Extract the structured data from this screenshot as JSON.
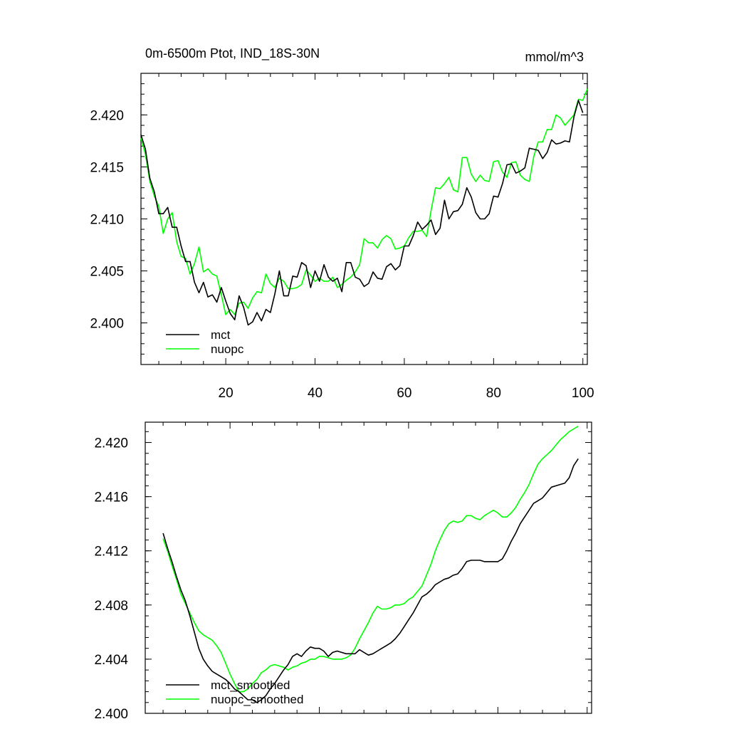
{
  "chart_data": [
    {
      "type": "line",
      "title": "0m-6500m Ptot, IND_18S-30N",
      "units": "mmol/m^3",
      "xlim": [
        1,
        101
      ],
      "ylim": [
        2.396,
        2.424
      ],
      "xticks": [
        20,
        40,
        60,
        80,
        100
      ],
      "yticks": [
        2.4,
        2.405,
        2.41,
        2.415,
        2.42
      ],
      "ytick_labels": [
        "2.400",
        "2.405",
        "2.410",
        "2.415",
        "2.420"
      ],
      "legend_position": "bottom-left",
      "series": [
        {
          "name": "mct",
          "color": "#000000",
          "x": [
            1,
            2,
            3,
            4,
            5,
            6,
            7,
            8,
            9,
            10,
            11,
            12,
            13,
            14,
            15,
            16,
            17,
            18,
            19,
            20,
            21,
            22,
            23,
            24,
            25,
            26,
            27,
            28,
            29,
            30,
            31,
            32,
            33,
            34,
            35,
            36,
            37,
            38,
            39,
            40,
            41,
            42,
            43,
            44,
            45,
            46,
            47,
            48,
            49,
            50,
            51,
            52,
            53,
            54,
            55,
            56,
            57,
            58,
            59,
            60,
            61,
            62,
            63,
            64,
            65,
            66,
            67,
            68,
            69,
            70,
            71,
            72,
            73,
            74,
            75,
            76,
            77,
            78,
            79,
            80,
            81,
            82,
            83,
            84,
            85,
            86,
            87,
            88,
            89,
            90,
            91,
            92,
            93,
            94,
            95,
            96,
            97,
            98,
            99,
            100
          ],
          "values": [
            2.4181,
            2.4167,
            2.4139,
            2.4126,
            2.4105,
            2.4105,
            2.4111,
            2.4092,
            2.4092,
            2.4074,
            2.4059,
            2.4059,
            2.4039,
            2.4029,
            2.4039,
            2.4025,
            2.4027,
            2.402,
            2.4034,
            2.4021,
            2.4009,
            2.4003,
            2.4026,
            2.4015,
            2.3998,
            2.4001,
            2.401,
            2.4002,
            2.4013,
            2.401,
            2.4028,
            2.405,
            2.4026,
            2.4026,
            2.4045,
            2.4044,
            2.4058,
            2.4055,
            2.4034,
            2.405,
            2.404,
            2.4056,
            2.4044,
            2.404,
            2.4043,
            2.403,
            2.4058,
            2.4058,
            2.4044,
            2.4042,
            2.4035,
            2.4038,
            2.4049,
            2.4043,
            2.4042,
            2.4054,
            2.4057,
            2.4051,
            2.4055,
            2.4074,
            2.4074,
            2.4084,
            2.4097,
            2.409,
            2.4094,
            2.4099,
            2.4085,
            2.4091,
            2.4118,
            2.41,
            2.4107,
            2.4108,
            2.4114,
            2.413,
            2.4121,
            2.4106,
            2.41,
            2.41,
            2.4105,
            2.4122,
            2.4121,
            2.4134,
            2.4152,
            2.4153,
            2.4144,
            2.4146,
            2.4149,
            2.4168,
            2.4167,
            2.4166,
            2.4158,
            2.4164,
            2.4176,
            2.4172,
            2.4173,
            2.4175,
            2.4174,
            2.4198,
            2.4214,
            2.4202
          ]
        },
        {
          "name": "nuopc",
          "color": "#00ff00",
          "x": [
            1,
            2,
            3,
            4,
            5,
            6,
            7,
            8,
            9,
            10,
            11,
            12,
            13,
            14,
            15,
            16,
            17,
            18,
            19,
            20,
            21,
            22,
            23,
            24,
            25,
            26,
            27,
            28,
            29,
            30,
            31,
            32,
            33,
            34,
            35,
            36,
            37,
            38,
            39,
            40,
            41,
            42,
            43,
            44,
            45,
            46,
            47,
            48,
            49,
            50,
            51,
            52,
            53,
            54,
            55,
            56,
            57,
            58,
            59,
            60,
            61,
            62,
            63,
            64,
            65,
            66,
            67,
            68,
            69,
            70,
            71,
            72,
            73,
            74,
            75,
            76,
            77,
            78,
            79,
            80,
            81,
            82,
            83,
            84,
            85,
            86,
            87,
            88,
            89,
            90,
            91,
            92,
            93,
            94,
            95,
            96,
            97,
            98,
            99,
            100,
            101
          ],
          "values": [
            2.4178,
            2.4162,
            2.4136,
            2.4122,
            2.4112,
            2.4086,
            2.41,
            2.4106,
            2.4078,
            2.4064,
            2.4062,
            2.4047,
            2.4057,
            2.4073,
            2.4049,
            2.4052,
            2.4047,
            2.4045,
            2.4027,
            2.4008,
            2.4013,
            2.4008,
            2.4019,
            2.402,
            2.4014,
            2.4024,
            2.403,
            2.4029,
            2.4047,
            2.4038,
            2.4034,
            2.4043,
            2.404,
            2.4033,
            2.4033,
            2.4034,
            2.4037,
            2.4051,
            2.4046,
            2.404,
            2.4043,
            2.404,
            2.404,
            2.4044,
            2.4034,
            2.4037,
            2.4041,
            2.4044,
            2.4049,
            2.4056,
            2.4081,
            2.4077,
            2.4077,
            2.4072,
            2.408,
            2.4084,
            2.4081,
            2.4071,
            2.4072,
            2.4074,
            2.4082,
            2.4088,
            2.4088,
            2.4089,
            2.4083,
            2.4108,
            2.413,
            2.4129,
            2.4134,
            2.414,
            2.4128,
            2.4126,
            2.4159,
            2.4159,
            2.4143,
            2.4136,
            2.4142,
            2.4137,
            2.4136,
            2.4155,
            2.4156,
            2.4145,
            2.414,
            2.4154,
            2.4155,
            2.4142,
            2.4138,
            2.4136,
            2.416,
            2.4174,
            2.4174,
            2.4186,
            2.4186,
            2.42,
            2.4197,
            2.419,
            2.4195,
            2.42,
            2.4215,
            2.4214,
            2.4225
          ]
        }
      ]
    },
    {
      "type": "line",
      "title": "",
      "xlim": [
        1,
        101
      ],
      "ylim": [
        2.4,
        2.4215
      ],
      "xticks": [
        20,
        40,
        60,
        80,
        100
      ],
      "yticks": [
        2.4,
        2.404,
        2.408,
        2.412,
        2.416,
        2.42
      ],
      "ytick_labels": [
        "2.400",
        "2.404",
        "2.408",
        "2.412",
        "2.416",
        "2.420"
      ],
      "legend_position": "bottom-left",
      "series": [
        {
          "name": "mct_smoothed",
          "color": "#000000",
          "x": [
            5,
            6,
            7,
            8,
            9,
            10,
            11,
            12,
            13,
            14,
            15,
            16,
            17,
            18,
            19,
            20,
            21,
            22,
            23,
            24,
            25,
            26,
            27,
            28,
            29,
            30,
            31,
            32,
            33,
            34,
            35,
            36,
            37,
            38,
            39,
            40,
            41,
            42,
            43,
            44,
            45,
            46,
            47,
            48,
            49,
            50,
            51,
            52,
            53,
            54,
            55,
            56,
            57,
            58,
            59,
            60,
            61,
            62,
            63,
            64,
            65,
            66,
            67,
            68,
            69,
            70,
            71,
            72,
            73,
            74,
            75,
            76,
            77,
            78,
            79,
            80,
            81,
            82,
            83,
            84,
            85,
            86,
            87,
            88,
            89,
            90,
            91,
            92,
            93,
            94,
            95,
            96,
            97,
            98
          ],
          "values": [
            2.4133,
            2.4122,
            2.4112,
            2.4101,
            2.4091,
            2.4083,
            2.4072,
            2.406,
            2.4048,
            2.404,
            2.4035,
            2.4031,
            2.4029,
            2.4027,
            2.4025,
            2.4022,
            2.4018,
            2.4016,
            2.4013,
            2.401,
            2.401,
            2.4008,
            2.401,
            2.4013,
            2.4018,
            2.4022,
            2.4027,
            2.4032,
            2.4036,
            2.4042,
            2.4044,
            2.4042,
            2.4046,
            2.4049,
            2.4048,
            2.4048,
            2.4046,
            2.4042,
            2.4045,
            2.4046,
            2.4045,
            2.4044,
            2.4044,
            2.4044,
            2.4047,
            2.4045,
            2.4043,
            2.4044,
            2.4046,
            2.4048,
            2.405,
            2.4052,
            2.4055,
            2.4059,
            2.4064,
            2.4069,
            2.4074,
            2.408,
            2.4086,
            2.4088,
            2.4091,
            2.4095,
            2.4097,
            2.4099,
            2.41,
            2.4102,
            2.4103,
            2.4107,
            2.4112,
            2.4113,
            2.4113,
            2.4113,
            2.4112,
            2.4112,
            2.4112,
            2.4112,
            2.4114,
            2.412,
            2.4127,
            2.4133,
            2.414,
            2.4145,
            2.415,
            2.4155,
            2.4157,
            2.4159,
            2.4163,
            2.4167,
            2.4168,
            2.4169,
            2.417,
            2.4174,
            2.4183,
            2.4188
          ]
        },
        {
          "name": "nuopc_smoothed",
          "color": "#00ff00",
          "x": [
            5,
            6,
            7,
            8,
            9,
            10,
            11,
            12,
            13,
            14,
            15,
            16,
            17,
            18,
            19,
            20,
            21,
            22,
            23,
            24,
            25,
            26,
            27,
            28,
            29,
            30,
            31,
            32,
            33,
            34,
            35,
            36,
            37,
            38,
            39,
            40,
            41,
            42,
            43,
            44,
            45,
            46,
            47,
            48,
            49,
            50,
            51,
            52,
            53,
            54,
            55,
            56,
            57,
            58,
            59,
            60,
            61,
            62,
            63,
            64,
            65,
            66,
            67,
            68,
            69,
            70,
            71,
            72,
            73,
            74,
            75,
            76,
            77,
            78,
            79,
            80,
            81,
            82,
            83,
            84,
            85,
            86,
            87,
            88,
            89,
            90,
            91,
            92,
            93,
            94,
            95,
            96,
            97,
            98
          ],
          "values": [
            2.4129,
            2.412,
            2.4109,
            2.4099,
            2.4088,
            2.4081,
            2.4074,
            2.4067,
            2.4061,
            2.4058,
            2.4056,
            2.4054,
            2.405,
            2.4045,
            2.4037,
            2.4029,
            2.4022,
            2.4016,
            2.4016,
            2.4018,
            2.4022,
            2.4025,
            2.403,
            2.4032,
            2.4035,
            2.4036,
            2.4035,
            2.4034,
            2.4032,
            2.4034,
            2.4035,
            2.4037,
            2.4038,
            2.404,
            2.404,
            2.4042,
            2.4042,
            2.4041,
            2.404,
            2.404,
            2.404,
            2.4041,
            2.4043,
            2.4048,
            2.4055,
            2.4061,
            2.4067,
            2.4074,
            2.4079,
            2.4077,
            2.4077,
            2.4078,
            2.408,
            2.408,
            2.4081,
            2.4084,
            2.4086,
            2.409,
            2.4094,
            2.4102,
            2.411,
            2.412,
            2.4128,
            2.4135,
            2.414,
            2.4142,
            2.4141,
            2.4142,
            2.4146,
            2.4146,
            2.4144,
            2.4143,
            2.4146,
            2.4148,
            2.415,
            2.4148,
            2.4145,
            2.4145,
            2.4148,
            2.4152,
            2.4158,
            2.4163,
            2.4169,
            2.4177,
            2.4184,
            2.4188,
            2.4191,
            2.4194,
            2.4198,
            2.4202,
            2.4205,
            2.4208,
            2.421,
            2.4212
          ]
        }
      ]
    }
  ]
}
